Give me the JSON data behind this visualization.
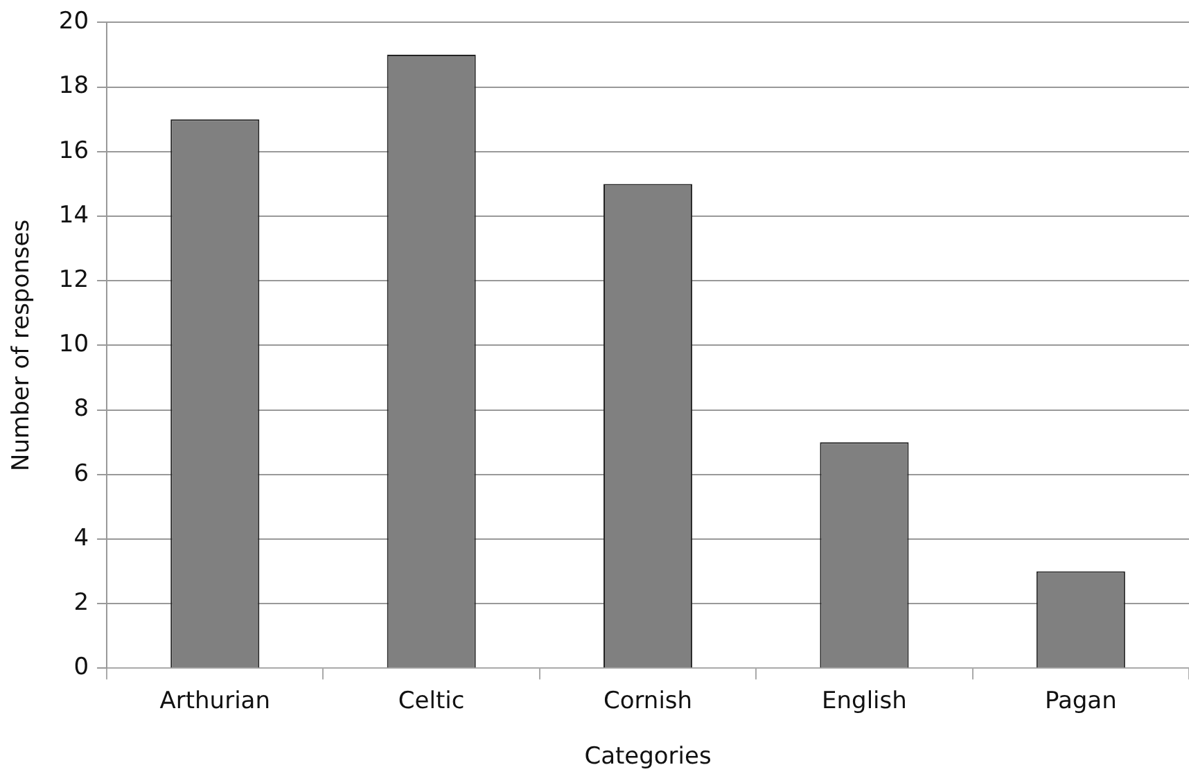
{
  "chart_data": {
    "type": "bar",
    "xlabel": "Categories",
    "ylabel": "Number of responses",
    "categories": [
      "Arthurian",
      "Celtic",
      "Cornish",
      "English",
      "Pagan"
    ],
    "values": [
      17,
      19,
      15,
      7,
      3
    ],
    "color": "#808080",
    "ylim": [
      0,
      20
    ],
    "yticks": [
      0,
      2,
      4,
      6,
      8,
      10,
      12,
      14,
      16,
      18,
      20
    ],
    "grid": "y",
    "legend": false
  }
}
